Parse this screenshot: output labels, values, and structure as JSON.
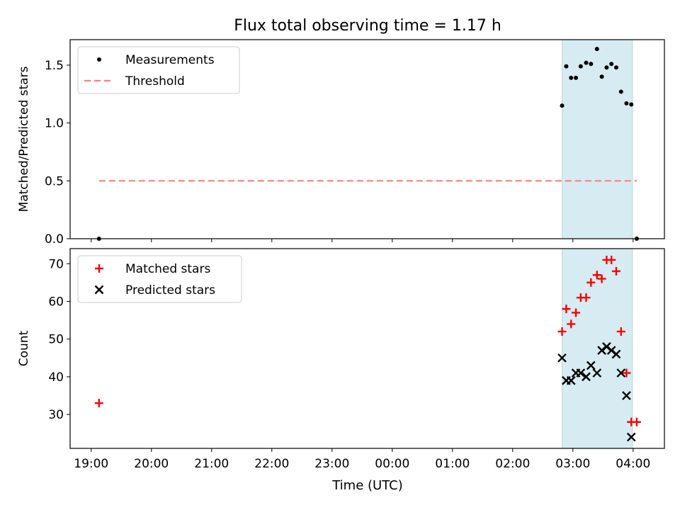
{
  "title": "Flux total observing time = 1.17 h",
  "xlabel": "Time (UTC)",
  "x_tick_labels": [
    "19:00",
    "20:00",
    "21:00",
    "22:00",
    "23:00",
    "00:00",
    "01:00",
    "02:00",
    "03:00",
    "04:00"
  ],
  "colors": {
    "measurement": "#000000",
    "threshold": "#ff7f7f",
    "matched": "#ff0000",
    "predicted": "#000000",
    "span_fill": "#add8e6"
  },
  "chart_data": [
    {
      "type": "scatter",
      "ylabel": "Matched/Predicted stars",
      "x_unit": "hours since 19:00 UTC",
      "xlim": [
        -0.35,
        9.52
      ],
      "ylim": [
        0,
        1.72
      ],
      "y_ticks": [
        0.0,
        0.5,
        1.0,
        1.5
      ],
      "y_tick_labels": [
        "0.0",
        "0.5",
        "1.0",
        "1.5"
      ],
      "legend": {
        "placement": "upper left",
        "entries": [
          "Measurements",
          "Threshold"
        ]
      },
      "highlight_span": [
        7.82,
        8.99
      ],
      "series": [
        {
          "name": "Measurements",
          "marker": "dot",
          "x": [
            0.13,
            7.82,
            7.89,
            7.97,
            8.05,
            8.13,
            8.22,
            8.3,
            8.4,
            8.48,
            8.56,
            8.64,
            8.72,
            8.8,
            8.89,
            8.97,
            9.06
          ],
          "y": [
            0.0,
            1.15,
            1.49,
            1.39,
            1.39,
            1.49,
            1.52,
            1.51,
            1.64,
            1.4,
            1.48,
            1.51,
            1.48,
            1.27,
            1.17,
            1.16,
            0.0
          ]
        },
        {
          "name": "Threshold",
          "style": "dashed",
          "x": [
            0.13,
            9.06
          ],
          "y": [
            0.5,
            0.5
          ]
        }
      ]
    },
    {
      "type": "scatter",
      "ylabel": "Count",
      "x_unit": "hours since 19:00 UTC",
      "xlim": [
        -0.35,
        9.52
      ],
      "ylim": [
        21,
        74
      ],
      "y_ticks": [
        30,
        40,
        50,
        60,
        70
      ],
      "y_tick_labels": [
        "30",
        "40",
        "50",
        "60",
        "70"
      ],
      "legend": {
        "placement": "upper left",
        "entries": [
          "Matched stars",
          "Predicted stars"
        ]
      },
      "highlight_span": [
        7.82,
        8.99
      ],
      "series": [
        {
          "name": "Matched stars",
          "marker": "plus",
          "x": [
            0.13,
            7.82,
            7.89,
            7.97,
            8.05,
            8.13,
            8.22,
            8.3,
            8.4,
            8.48,
            8.56,
            8.64,
            8.72,
            8.8,
            8.89,
            8.97,
            9.06
          ],
          "y": [
            33,
            52,
            58,
            54,
            57,
            61,
            61,
            65,
            67,
            66,
            71,
            71,
            68,
            52,
            41,
            28,
            28
          ]
        },
        {
          "name": "Predicted stars",
          "marker": "x",
          "x": [
            7.82,
            7.89,
            7.97,
            8.05,
            8.13,
            8.22,
            8.3,
            8.4,
            8.48,
            8.56,
            8.64,
            8.72,
            8.8,
            8.89,
            8.97
          ],
          "y": [
            45,
            39,
            39,
            41,
            41,
            40,
            43,
            41,
            47,
            48,
            47,
            46,
            41,
            35,
            24
          ]
        }
      ]
    }
  ]
}
